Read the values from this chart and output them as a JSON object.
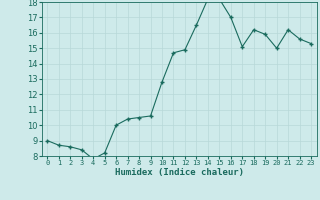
{
  "x": [
    0,
    1,
    2,
    3,
    4,
    5,
    6,
    7,
    8,
    9,
    10,
    11,
    12,
    13,
    14,
    15,
    16,
    17,
    18,
    19,
    20,
    21,
    22,
    23
  ],
  "y": [
    9.0,
    8.7,
    8.6,
    8.4,
    7.8,
    8.2,
    10.0,
    10.4,
    10.5,
    10.6,
    12.8,
    14.7,
    14.9,
    16.5,
    18.2,
    18.2,
    17.0,
    15.1,
    16.2,
    15.9,
    15.0,
    16.2,
    15.6,
    15.3
  ],
  "xlabel": "Humidex (Indice chaleur)",
  "bg_color": "#ceeaea",
  "line_color": "#1a6b5e",
  "marker_color": "#1a6b5e",
  "grid_color": "#b8d8d8",
  "ylim": [
    8,
    18
  ],
  "yticks": [
    8,
    9,
    10,
    11,
    12,
    13,
    14,
    15,
    16,
    17,
    18
  ],
  "tick_color": "#1a6b5e",
  "axes_color": "#1a6b5e",
  "ytick_fontsize": 6.0,
  "xtick_fontsize": 5.0,
  "xlabel_fontsize": 6.5
}
